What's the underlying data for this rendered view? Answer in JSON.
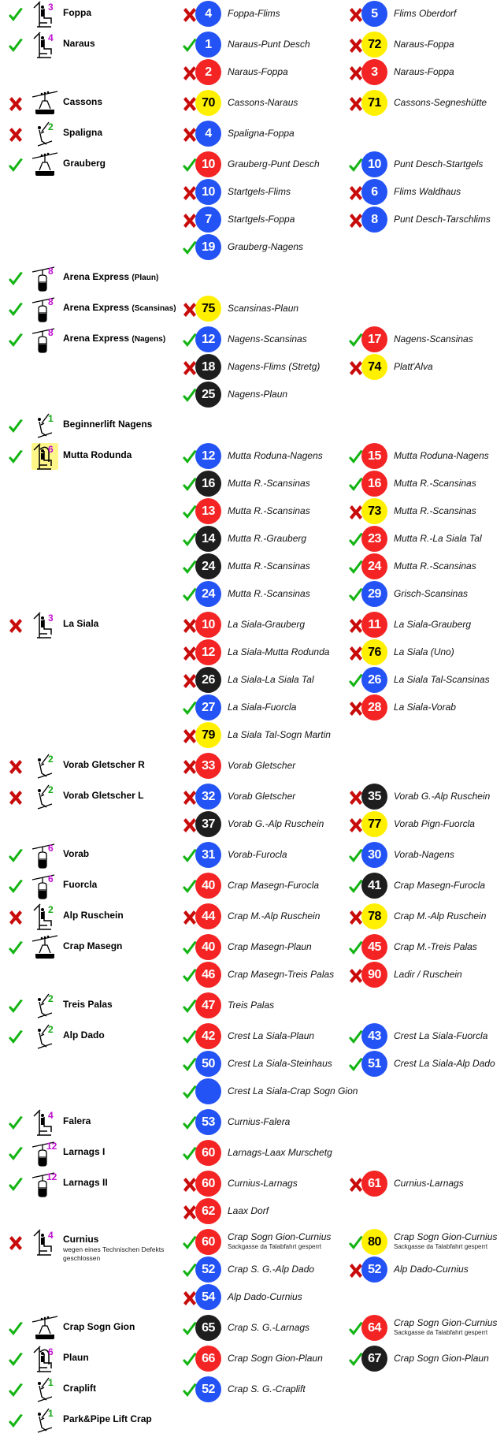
{
  "colors": {
    "blue": "#2453f5",
    "red": "#f42424",
    "yellow": "#fff000",
    "black": "#1e1e1e",
    "open": "#14b414",
    "closed": "#c80c0c",
    "cap_chair": "#c010d0",
    "cap_drag": "#12a812",
    "highlight": "#fff68a"
  },
  "lifts": [
    {
      "status": "open",
      "type": "chairlift",
      "cap": "3",
      "name": "Foppa",
      "routes": [
        {
          "status": "closed",
          "num": "4",
          "color": "blue",
          "name": "Foppa-Flims"
        },
        {
          "status": "closed",
          "num": "5",
          "color": "blue",
          "name": "Flims Oberdorf"
        }
      ]
    },
    {
      "status": "open",
      "type": "chairlift",
      "cap": "4",
      "name": "Naraus",
      "routes": [
        {
          "status": "open",
          "num": "1",
          "color": "blue",
          "name": "Naraus-Punt Desch"
        },
        {
          "status": "closed",
          "num": "72",
          "color": "yellow",
          "name": "Naraus-Foppa"
        },
        {
          "status": "closed",
          "num": "2",
          "color": "red",
          "name": "Naraus-Foppa"
        },
        {
          "status": "closed",
          "num": "3",
          "color": "red",
          "name": "Naraus-Foppa"
        }
      ]
    },
    {
      "status": "closed",
      "type": "cablecar",
      "cap": "",
      "name": "Cassons",
      "routes": [
        {
          "status": "closed",
          "num": "70",
          "color": "yellow",
          "name": "Cassons-Naraus"
        },
        {
          "status": "closed",
          "num": "71",
          "color": "yellow",
          "name": "Cassons-Segneshütte"
        }
      ]
    },
    {
      "status": "closed",
      "type": "draglift",
      "cap": "2",
      "name": "Spaligna",
      "routes": [
        {
          "status": "closed",
          "num": "4",
          "color": "blue",
          "name": "Spaligna-Foppa"
        }
      ]
    },
    {
      "status": "open",
      "type": "cablecar",
      "cap": "",
      "name": "Grauberg",
      "routes": [
        {
          "status": "open",
          "num": "10",
          "color": "red",
          "name": "Grauberg-Punt Desch"
        },
        {
          "status": "open",
          "num": "10",
          "color": "blue",
          "name": "Punt Desch-Startgels"
        },
        {
          "status": "closed",
          "num": "10",
          "color": "blue",
          "name": "Startgels-Flims"
        },
        {
          "status": "closed",
          "num": "6",
          "color": "blue",
          "name": "Flims Waldhaus"
        },
        {
          "status": "closed",
          "num": "7",
          "color": "blue",
          "name": "Startgels-Foppa"
        },
        {
          "status": "closed",
          "num": "8",
          "color": "blue",
          "name": "Punt Desch-Tarschlims"
        },
        {
          "status": "open",
          "num": "19",
          "color": "blue",
          "name": "Grauberg-Nagens"
        }
      ]
    },
    {
      "status": "open",
      "type": "gondola",
      "cap": "8",
      "name": "Arena Express",
      "name_sub": "(Plaun)",
      "routes": []
    },
    {
      "status": "open",
      "type": "gondola",
      "cap": "8",
      "name": "Arena Express",
      "name_sub": "(Scansinas)",
      "routes": [
        {
          "status": "closed",
          "num": "75",
          "color": "yellow",
          "name": "Scansinas-Plaun"
        }
      ]
    },
    {
      "status": "open",
      "type": "gondola",
      "cap": "8",
      "name": "Arena Express",
      "name_sub": "(Nagens)",
      "routes": [
        {
          "status": "open",
          "num": "12",
          "color": "blue",
          "name": "Nagens-Scansinas"
        },
        {
          "status": "open",
          "num": "17",
          "color": "red",
          "name": "Nagens-Scansinas"
        },
        {
          "status": "closed",
          "num": "18",
          "color": "black",
          "name": "Nagens-Flims (Stretg)"
        },
        {
          "status": "closed",
          "num": "74",
          "color": "yellow",
          "name": "Platt'Alva"
        },
        {
          "status": "open",
          "num": "25",
          "color": "black",
          "name": "Nagens-Plaun"
        }
      ]
    },
    {
      "status": "open",
      "type": "draglift",
      "cap": "1",
      "name": "Beginnerlift Nagens",
      "routes": []
    },
    {
      "status": "open",
      "type": "chairlift-hood",
      "cap": "6",
      "highlight": true,
      "name": "Mutta Rodunda",
      "routes": [
        {
          "status": "open",
          "num": "12",
          "color": "blue",
          "name": "Mutta Roduna-Nagens"
        },
        {
          "status": "open",
          "num": "15",
          "color": "red",
          "name": "Mutta Roduna-Nagens"
        },
        {
          "status": "open",
          "num": "16",
          "color": "black",
          "name": "Mutta R.-Scansinas"
        },
        {
          "status": "open",
          "num": "16",
          "color": "red",
          "name": "Mutta R.-Scansinas"
        },
        {
          "status": "open",
          "num": "13",
          "color": "red",
          "name": "Mutta R.-Scansinas"
        },
        {
          "status": "closed",
          "num": "73",
          "color": "yellow",
          "name": "Mutta R.-Scansinas"
        },
        {
          "status": "open",
          "num": "14",
          "color": "black",
          "name": "Mutta R.-Grauberg"
        },
        {
          "status": "open",
          "num": "23",
          "color": "red",
          "name": "Mutta R.-La Siala Tal"
        },
        {
          "status": "open",
          "num": "24",
          "color": "black",
          "name": "Mutta R.-Scansinas"
        },
        {
          "status": "open",
          "num": "24",
          "color": "red",
          "name": "Mutta R.-Scansinas"
        },
        {
          "status": "open",
          "num": "24",
          "color": "blue",
          "name": "Mutta R.-Scansinas"
        },
        {
          "status": "open",
          "num": "29",
          "color": "blue",
          "name": "Grisch-Scansinas"
        }
      ]
    },
    {
      "status": "closed",
      "type": "chairlift",
      "cap": "3",
      "name": "La Siala",
      "routes": [
        {
          "status": "closed",
          "num": "10",
          "color": "red",
          "name": "La Siala-Grauberg"
        },
        {
          "status": "closed",
          "num": "11",
          "color": "red",
          "name": "La Siala-Grauberg"
        },
        {
          "status": "closed",
          "num": "12",
          "color": "red",
          "name": "La Siala-Mutta Rodunda"
        },
        {
          "status": "closed",
          "num": "76",
          "color": "yellow",
          "name": "La Siala (Uno)"
        },
        {
          "status": "closed",
          "num": "26",
          "color": "black",
          "name": "La Siala-La Siala Tal"
        },
        {
          "status": "open",
          "num": "26",
          "color": "blue",
          "name": "La Siala Tal-Scansinas"
        },
        {
          "status": "open",
          "num": "27",
          "color": "blue",
          "name": "La Siala-Fuorcla"
        },
        {
          "status": "closed",
          "num": "28",
          "color": "red",
          "name": "La Siala-Vorab"
        },
        {
          "status": "closed",
          "num": "79",
          "color": "yellow",
          "name": "La Siala Tal-Sogn Martin"
        }
      ]
    },
    {
      "status": "closed",
      "type": "draglift",
      "cap": "2",
      "name": "Vorab Gletscher R",
      "routes": [
        {
          "status": "closed",
          "num": "33",
          "color": "red",
          "name": "Vorab Gletscher"
        }
      ]
    },
    {
      "status": "closed",
      "type": "draglift",
      "cap": "2",
      "name": "Vorab Gletscher L",
      "routes": [
        {
          "status": "closed",
          "num": "32",
          "color": "blue",
          "name": "Vorab Gletscher"
        },
        {
          "status": "closed",
          "num": "35",
          "color": "black",
          "name": "Vorab G.-Alp Ruschein"
        },
        {
          "status": "closed",
          "num": "37",
          "color": "black",
          "name": "Vorab G.-Alp Ruschein"
        },
        {
          "status": "closed",
          "num": "77",
          "color": "yellow",
          "name": "Vorab Pign-Fuorcla"
        }
      ]
    },
    {
      "status": "open",
      "type": "gondola",
      "cap": "6",
      "name": "Vorab",
      "routes": [
        {
          "status": "open",
          "num": "31",
          "color": "blue",
          "name": "Vorab-Furocla"
        },
        {
          "status": "open",
          "num": "30",
          "color": "blue",
          "name": "Vorab-Nagens"
        }
      ]
    },
    {
      "status": "open",
      "type": "gondola",
      "cap": "6",
      "name": "Fuorcla",
      "routes": [
        {
          "status": "open",
          "num": "40",
          "color": "red",
          "name": "Crap Masegn-Furocla"
        },
        {
          "status": "open",
          "num": "41",
          "color": "black",
          "name": "Crap Masegn-Furocla"
        }
      ]
    },
    {
      "status": "closed",
      "type": "chairlift",
      "cap": "2",
      "cap_color": "drag",
      "name": "Alp Ruschein",
      "routes": [
        {
          "status": "closed",
          "num": "44",
          "color": "red",
          "name": "Crap M.-Alp Ruschein"
        },
        {
          "status": "closed",
          "num": "78",
          "color": "yellow",
          "name": "Crap M.-Alp Ruschein"
        }
      ]
    },
    {
      "status": "open",
      "type": "cablecar",
      "cap": "",
      "name": "Crap Masegn",
      "routes": [
        {
          "status": "open",
          "num": "40",
          "color": "red",
          "name": "Crap Masegn-Plaun"
        },
        {
          "status": "open",
          "num": "45",
          "color": "red",
          "name": "Crap M.-Treis Palas"
        },
        {
          "status": "open",
          "num": "46",
          "color": "red",
          "name": "Crap Masegn-Treis Palas"
        },
        {
          "status": "closed",
          "num": "90",
          "color": "red",
          "name": "Ladir / Ruschein"
        }
      ]
    },
    {
      "status": "open",
      "type": "draglift",
      "cap": "2",
      "name": "Treis Palas",
      "routes": [
        {
          "status": "open",
          "num": "47",
          "color": "red",
          "name": "Treis Palas"
        }
      ]
    },
    {
      "status": "open",
      "type": "draglift",
      "cap": "2",
      "name": "Alp Dado",
      "routes": [
        {
          "status": "open",
          "num": "42",
          "color": "red",
          "name": "Crest La Siala-Plaun"
        },
        {
          "status": "open",
          "num": "43",
          "color": "blue",
          "name": "Crest La Siala-Fuorcla"
        },
        {
          "status": "open",
          "num": "50",
          "color": "blue",
          "name": "Crest La Siala-Steinhaus"
        },
        {
          "status": "open",
          "num": "51",
          "color": "blue",
          "name": "Crest La Siala-Alp Dado"
        },
        {
          "status": "open",
          "num": "",
          "color": "blue",
          "name": "Crest La Siala-Crap Sogn Gion"
        }
      ]
    },
    {
      "status": "open",
      "type": "chairlift",
      "cap": "4",
      "name": "Falera",
      "routes": [
        {
          "status": "open",
          "num": "53",
          "color": "blue",
          "name": "Curnius-Falera"
        }
      ]
    },
    {
      "status": "open",
      "type": "gondola",
      "cap": "12",
      "name": "Larnags I",
      "routes": [
        {
          "status": "open",
          "num": "60",
          "color": "red",
          "name": "Larnags-Laax Murschetg"
        }
      ]
    },
    {
      "status": "open",
      "type": "gondola",
      "cap": "12",
      "name": "Larnags II",
      "routes": [
        {
          "status": "closed",
          "num": "60",
          "color": "red",
          "name": "Curnius-Larnags"
        },
        {
          "status": "closed",
          "num": "61",
          "color": "red",
          "name": "Curnius-Larnags"
        },
        {
          "status": "closed",
          "num": "62",
          "color": "red",
          "name": "Laax Dorf"
        }
      ]
    },
    {
      "status": "closed",
      "type": "chairlift",
      "cap": "4",
      "name": "Curnius",
      "note": "wegen eines Technischen Defekts geschlossen",
      "routes": [
        {
          "status": "open",
          "num": "60",
          "color": "red",
          "name": "Crap Sogn Gion-Curnius",
          "note": "Sackgasse da Talabfahrt gesperrt"
        },
        {
          "status": "open",
          "num": "80",
          "color": "yellow",
          "name": "Crap Sogn Gion-Curnius",
          "note": "Sackgasse da Talabfahrt gesperrt"
        },
        {
          "status": "open",
          "num": "52",
          "color": "blue",
          "name": "Crap S. G.-Alp Dado"
        },
        {
          "status": "closed",
          "num": "52",
          "color": "blue",
          "name": "Alp Dado-Curnius"
        },
        {
          "status": "closed",
          "num": "54",
          "color": "blue",
          "name": "Alp Dado-Curnius"
        }
      ]
    },
    {
      "status": "open",
      "type": "cablecar",
      "cap": "",
      "name": "Crap Sogn Gion",
      "routes": [
        {
          "status": "open",
          "num": "65",
          "color": "black",
          "name": "Crap S. G.-Larnags"
        },
        {
          "status": "open",
          "num": "64",
          "color": "red",
          "name": "Crap Sogn Gion-Curnius",
          "note": "Sackgasse da Talabfahrt gesperrt"
        }
      ]
    },
    {
      "status": "open",
      "type": "chairlift-hood",
      "cap": "6",
      "name": "Plaun",
      "routes": [
        {
          "status": "open",
          "num": "66",
          "color": "red",
          "name": "Crap Sogn Gion-Plaun"
        },
        {
          "status": "open",
          "num": "67",
          "color": "black",
          "name": "Crap Sogn Gion-Plaun"
        }
      ]
    },
    {
      "status": "open",
      "type": "draglift",
      "cap": "1",
      "name": "Craplift",
      "routes": [
        {
          "status": "open",
          "num": "52",
          "color": "blue",
          "name": "Crap S. G.-Craplift"
        }
      ]
    },
    {
      "status": "open",
      "type": "draglift",
      "cap": "1",
      "name": "Park&Pipe Lift Crap",
      "routes": []
    }
  ]
}
